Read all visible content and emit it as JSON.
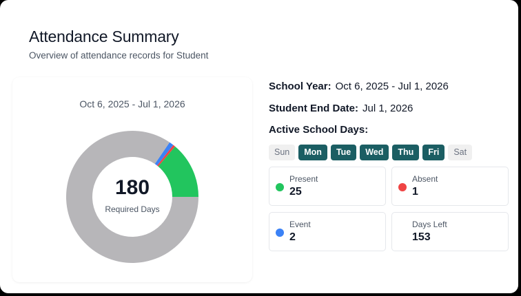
{
  "header": {
    "title": "Attendance Summary",
    "subtitle": "Overview of attendance records for Student"
  },
  "chart_card": {
    "date_range": "Oct 6, 2025 - Jul 1, 2026",
    "center_value": "180",
    "center_label": "Required Days"
  },
  "info": {
    "school_year_label": "School Year:",
    "school_year_value": "Oct 6, 2025 - Jul 1, 2026",
    "end_date_label": "Student End Date:",
    "end_date_value": "Jul 1, 2026",
    "active_days_label": "Active School Days:"
  },
  "days": [
    {
      "label": "Sun",
      "active": false
    },
    {
      "label": "Mon",
      "active": true
    },
    {
      "label": "Tue",
      "active": true
    },
    {
      "label": "Wed",
      "active": true
    },
    {
      "label": "Thu",
      "active": true
    },
    {
      "label": "Fri",
      "active": true
    },
    {
      "label": "Sat",
      "active": false
    }
  ],
  "stats": {
    "present": {
      "label": "Present",
      "value": "25",
      "color": "#22c55e"
    },
    "absent": {
      "label": "Absent",
      "value": "1",
      "color": "#ef4444"
    },
    "event": {
      "label": "Event",
      "value": "2",
      "color": "#3b82f6"
    },
    "days_left": {
      "label": "Days Left",
      "value": "153"
    }
  },
  "colors": {
    "active_day": "#1b5e63",
    "remaining": "#b7b6b9"
  },
  "chart_data": {
    "type": "pie",
    "title": "Oct 6, 2025 - Jul 1, 2026",
    "center_text": "180 Required Days",
    "categories": [
      "Present",
      "Absent",
      "Event",
      "Remaining"
    ],
    "values": [
      25,
      1,
      2,
      153
    ],
    "colors": [
      "#22c55e",
      "#ef4444",
      "#3b82f6",
      "#b7b6b9"
    ],
    "donut": true,
    "start_angle": "3 o'clock, counter-clockwise"
  }
}
